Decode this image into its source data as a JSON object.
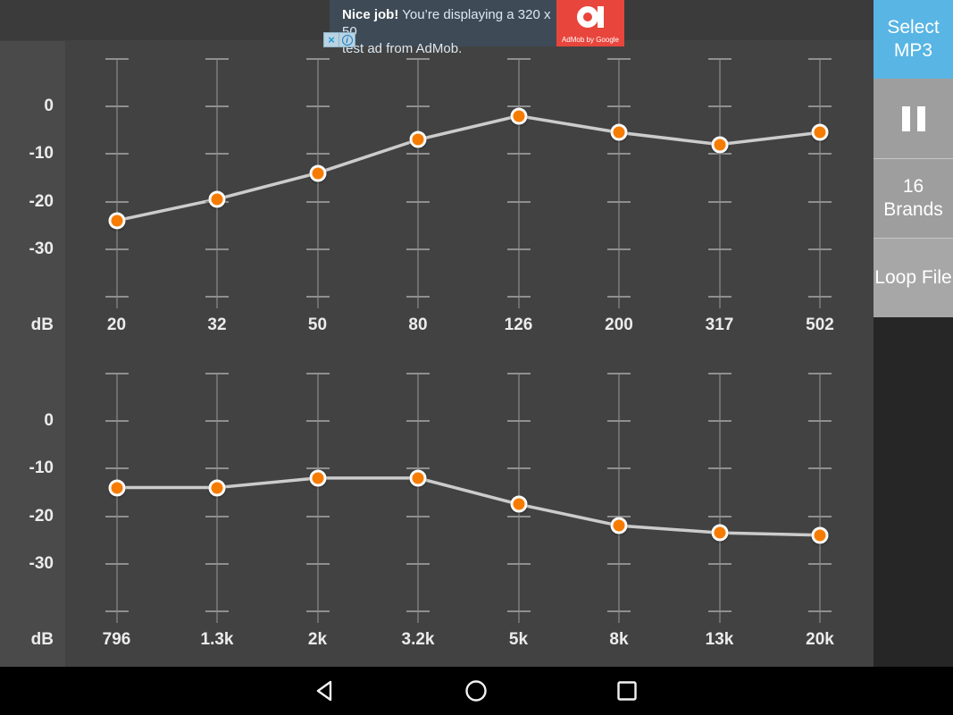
{
  "ad": {
    "headline_bold": "Nice job!",
    "headline_rest": " You’re displaying a 320 x 50",
    "line2": "test ad from AdMob.",
    "brand": "AdMob by Google",
    "close_label": "×",
    "info_label": "i",
    "colors": {
      "bg": "#3e4a55",
      "red": "#e8453c"
    }
  },
  "sidebar": {
    "buttons": [
      {
        "label": "Select MP3"
      },
      {
        "label": "",
        "icon": "pause"
      },
      {
        "label": "16 Brands"
      },
      {
        "label": "Loop File"
      }
    ],
    "colors": {
      "select_blue": "#58b5e4",
      "gray": "#9e9e9e",
      "light_gray": "#a7a7a7"
    }
  },
  "chart_data": [
    {
      "type": "line",
      "panel": "equalizer-low-bands",
      "unit": "dB",
      "yticks": [
        "0",
        "-10",
        "-20",
        "-30"
      ],
      "ylim": [
        -40,
        10
      ],
      "knob_color": "#f57c00",
      "line_color": "#cccccc",
      "bands": [
        {
          "freq": "20",
          "db": -24
        },
        {
          "freq": "32",
          "db": -19.5
        },
        {
          "freq": "50",
          "db": -14
        },
        {
          "freq": "80",
          "db": -7
        },
        {
          "freq": "126",
          "db": -2
        },
        {
          "freq": "200",
          "db": -5.5
        },
        {
          "freq": "317",
          "db": -8
        },
        {
          "freq": "502",
          "db": -5.5
        }
      ]
    },
    {
      "type": "line",
      "panel": "equalizer-high-bands",
      "unit": "dB",
      "yticks": [
        "0",
        "-10",
        "-20",
        "-30"
      ],
      "ylim": [
        -40,
        10
      ],
      "knob_color": "#f57c00",
      "line_color": "#cccccc",
      "bands": [
        {
          "freq": "796",
          "db": -14
        },
        {
          "freq": "1.3k",
          "db": -14
        },
        {
          "freq": "2k",
          "db": -12
        },
        {
          "freq": "3.2k",
          "db": -12
        },
        {
          "freq": "5k",
          "db": -17.5
        },
        {
          "freq": "8k",
          "db": -22
        },
        {
          "freq": "13k",
          "db": -23.5
        },
        {
          "freq": "20k",
          "db": -24
        }
      ]
    }
  ],
  "nav": {
    "icons": [
      "back",
      "home",
      "recents"
    ]
  }
}
